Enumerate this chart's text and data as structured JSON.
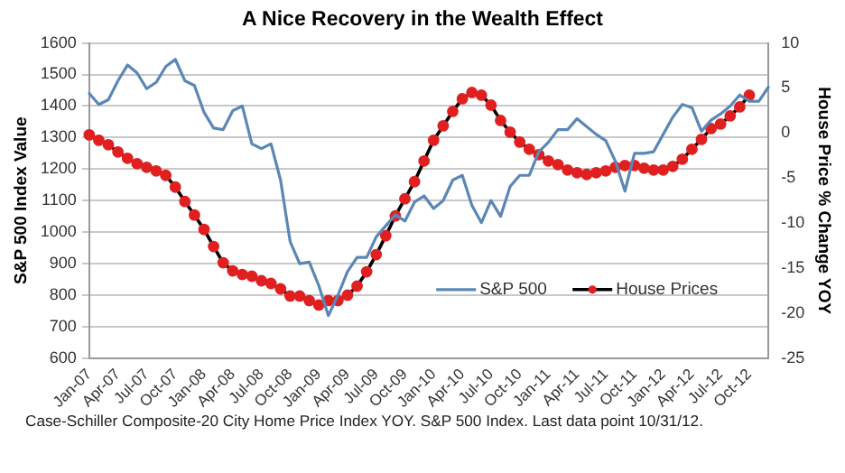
{
  "chart_data": {
    "type": "line",
    "title": "A Nice Recovery in the Wealth Effect",
    "ylabel": "S&P 500 Index Value",
    "y2label": "House Price % Change YOY",
    "categories": [
      "Jan-07",
      null,
      null,
      "Apr-07",
      null,
      null,
      "Jul-07",
      null,
      null,
      "Oct-07",
      null,
      null,
      "Jan-08",
      null,
      null,
      "Apr-08",
      null,
      null,
      "Jul-08",
      null,
      null,
      "Oct-08",
      null,
      null,
      "Jan-09",
      null,
      null,
      "Apr-09",
      null,
      null,
      "Jul-09",
      null,
      null,
      "Oct-09",
      null,
      null,
      "Jan-10",
      null,
      null,
      "Apr-10",
      null,
      null,
      "Jul-10",
      null,
      null,
      "Oct-10",
      null,
      null,
      "Jan-11",
      null,
      null,
      "Apr-11",
      null,
      null,
      "Jul-11",
      null,
      null,
      "Oct-11",
      null,
      null,
      "Jan-12",
      null,
      null,
      "Apr-12",
      null,
      null,
      "Jul-12",
      null,
      null,
      "Oct-12",
      null,
      null
    ],
    "series": [
      {
        "name": "S&P 500",
        "color": "#5b87b5",
        "values": [
          1440,
          1405,
          1420,
          1480,
          1530,
          1505,
          1455,
          1475,
          1525,
          1548,
          1480,
          1465,
          1380,
          1330,
          1325,
          1385,
          1400,
          1280,
          1265,
          1280,
          1165,
          970,
          900,
          905,
          830,
          735,
          800,
          875,
          920,
          920,
          985,
          1020,
          1055,
          1035,
          1095,
          1115,
          1075,
          1100,
          1165,
          1180,
          1085,
          1030,
          1100,
          1050,
          1145,
          1180,
          1180,
          1255,
          1285,
          1325,
          1325,
          1360,
          1335,
          1310,
          1290,
          1225,
          1130,
          1250,
          1250,
          1255,
          1310,
          1365,
          1405,
          1395,
          1320,
          1355,
          1375,
          1400,
          1435,
          1415,
          1415,
          1460
        ]
      },
      {
        "name": "House Prices",
        "color": "#e02020",
        "axis": "y2",
        "marker": "circle",
        "values": [
          -0.2,
          -0.8,
          -1.3,
          -2.1,
          -2.8,
          -3.4,
          -3.8,
          -4.2,
          -4.7,
          -6.0,
          -7.6,
          -9.1,
          -10.7,
          -12.6,
          -14.4,
          -15.3,
          -15.7,
          -15.9,
          -16.4,
          -16.7,
          -17.3,
          -18.1,
          -18.1,
          -18.6,
          -19.1,
          -18.6,
          -18.6,
          -18.0,
          -17.0,
          -15.4,
          -13.5,
          -11.4,
          -9.2,
          -7.3,
          -5.4,
          -3.1,
          -0.8,
          0.8,
          2.4,
          3.8,
          4.5,
          4.2,
          3.1,
          1.4,
          0.1,
          -1.0,
          -1.8,
          -2.4,
          -3.1,
          -3.5,
          -4.1,
          -4.4,
          -4.6,
          -4.4,
          -4.2,
          -3.8,
          -3.6,
          -3.6,
          -3.9,
          -4.1,
          -4.1,
          -3.7,
          -2.9,
          -1.8,
          -0.7,
          0.5,
          1.0,
          1.9,
          2.9,
          4.2,
          null,
          null
        ]
      }
    ],
    "ylim": [
      600,
      1600
    ],
    "yticks": [
      600,
      700,
      800,
      900,
      1000,
      1100,
      1200,
      1300,
      1400,
      1500,
      1600
    ],
    "y2lim": [
      -25,
      10
    ],
    "y2ticks": [
      -25,
      -20,
      -15,
      -10,
      -5,
      0,
      5,
      10
    ],
    "grid": "y",
    "legend": "bottom right",
    "annotations": [
      "Case-Schiller Composite-20 City Home Price Index YOY. S&P 500 Index. Last data point  10/31/12."
    ]
  }
}
